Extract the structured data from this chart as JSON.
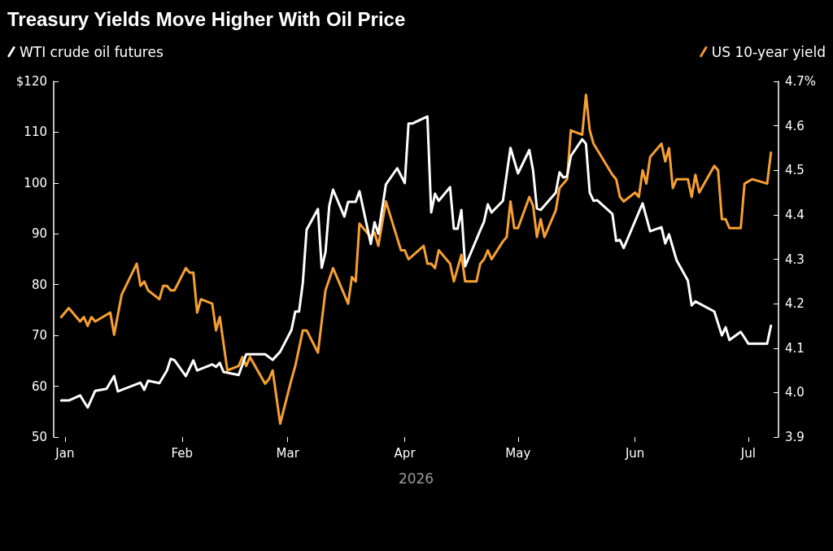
{
  "chart_data": {
    "type": "line",
    "title": "Treasury Yields Move Higher With Oil Price",
    "xlabel": "2026",
    "x": [
      "2025-12-31",
      "2026-01-02",
      "2026-01-05",
      "2026-01-07",
      "2026-01-09",
      "2026-01-12",
      "2026-01-14",
      "2026-01-15",
      "2026-01-21",
      "2026-01-22",
      "2026-01-23",
      "2026-01-26",
      "2026-01-28",
      "2026-01-29",
      "2026-01-30",
      "2026-02-02",
      "2026-02-04",
      "2026-02-05",
      "2026-02-09",
      "2026-02-10",
      "2026-02-11",
      "2026-02-12",
      "2026-02-16",
      "2026-02-18",
      "2026-02-23",
      "2026-02-25",
      "2026-02-27",
      "2026-03-02",
      "2026-03-03",
      "2026-03-04",
      "2026-03-05",
      "2026-03-06",
      "2026-03-09",
      "2026-03-10",
      "2026-03-11",
      "2026-03-12",
      "2026-03-13",
      "2026-03-16",
      "2026-03-17",
      "2026-03-19",
      "2026-03-20",
      "2026-03-23",
      "2026-03-24",
      "2026-03-25",
      "2026-03-27",
      "2026-03-30",
      "2026-04-01",
      "2026-04-02",
      "2026-04-03",
      "2026-04-07",
      "2026-04-08",
      "2026-04-09",
      "2026-04-10",
      "2026-04-13",
      "2026-04-14",
      "2026-04-15",
      "2026-04-16",
      "2026-04-17",
      "2026-04-21",
      "2026-04-22",
      "2026-04-23",
      "2026-04-24",
      "2026-04-27",
      "2026-04-29",
      "2026-05-01",
      "2026-05-04",
      "2026-05-05",
      "2026-05-06",
      "2026-05-07",
      "2026-05-11",
      "2026-05-12",
      "2026-05-13",
      "2026-05-14",
      "2026-05-15",
      "2026-05-18",
      "2026-05-19",
      "2026-05-20",
      "2026-05-21",
      "2026-05-22",
      "2026-05-26",
      "2026-05-27",
      "2026-05-28",
      "2026-05-29",
      "2026-06-03",
      "2026-06-05",
      "2026-06-08",
      "2026-06-09",
      "2026-06-10",
      "2026-06-12",
      "2026-06-15",
      "2026-06-16",
      "2026-06-17",
      "2026-06-22",
      "2026-06-24",
      "2026-06-25",
      "2026-06-26",
      "2026-06-29",
      "2026-07-01",
      "2026-07-06",
      "2026-07-07"
    ],
    "series": [
      {
        "name": "WTI crude oil futures",
        "color": "#ffffff",
        "values": [
          57.2,
          57.2,
          58.2,
          55.8,
          59.1,
          59.5,
          62.0,
          59.0,
          60.7,
          59.3,
          61.1,
          60.6,
          63.1,
          65.4,
          65.1,
          62.0,
          65.1,
          63.1,
          64.3,
          63.8,
          64.6,
          62.8,
          62.2,
          66.3,
          66.3,
          65.2,
          66.8,
          71.1,
          74.7,
          74.7,
          80.4,
          90.8,
          94.9,
          83.3,
          86.4,
          95.5,
          98.7,
          93.4,
          96.3,
          96.3,
          98.4,
          88.0,
          92.3,
          90.0,
          99.7,
          102.9,
          100.0,
          111.7,
          111.7,
          113.1,
          94.2,
          97.9,
          96.5,
          99.2,
          91.0,
          91.0,
          94.7,
          83.6,
          90.7,
          92.4,
          95.8,
          94.2,
          96.5,
          106.9,
          101.9,
          106.5,
          102.4,
          95.0,
          94.7,
          98.1,
          102.1,
          101.1,
          101.3,
          105.3,
          108.6,
          107.7,
          98.1,
          96.5,
          96.6,
          93.9,
          88.6,
          88.8,
          87.2,
          96.0,
          90.5,
          91.3,
          88.1,
          89.9,
          84.8,
          80.8,
          75.9,
          76.7,
          74.7,
          70.0,
          71.6,
          69.1,
          70.7,
          68.4,
          68.4,
          71.9
        ]
      },
      {
        "name": "US 10-year yield",
        "color": "#f7a032",
        "axis": "y2",
        "x": [
          "2025-12-31",
          "2026-01-02",
          "2026-01-05",
          "2026-01-06",
          "2026-01-07",
          "2026-01-08",
          "2026-01-09",
          "2026-01-13",
          "2026-01-14",
          "2026-01-16",
          "2026-01-20",
          "2026-01-21",
          "2026-01-22",
          "2026-01-23",
          "2026-01-26",
          "2026-01-27",
          "2026-01-28",
          "2026-01-29",
          "2026-01-30",
          "2026-02-02",
          "2026-02-03",
          "2026-02-04",
          "2026-02-05",
          "2026-02-06",
          "2026-02-09",
          "2026-02-10",
          "2026-02-11",
          "2026-02-13",
          "2026-02-16",
          "2026-02-17",
          "2026-02-18",
          "2026-02-19",
          "2026-02-23",
          "2026-02-24",
          "2026-02-25",
          "2026-02-27",
          "2026-03-02",
          "2026-03-03",
          "2026-03-05",
          "2026-03-06",
          "2026-03-09",
          "2026-03-11",
          "2026-03-13",
          "2026-03-17",
          "2026-03-18",
          "2026-03-19",
          "2026-03-20",
          "2026-03-23",
          "2026-03-24",
          "2026-03-25",
          "2026-03-27",
          "2026-03-31",
          "2026-04-01",
          "2026-04-02",
          "2026-04-06",
          "2026-04-07",
          "2026-04-08",
          "2026-04-09",
          "2026-04-10",
          "2026-04-13",
          "2026-04-14",
          "2026-04-16",
          "2026-04-17",
          "2026-04-20",
          "2026-04-21",
          "2026-04-22",
          "2026-04-23",
          "2026-04-24",
          "2026-04-27",
          "2026-04-28",
          "2026-04-29",
          "2026-04-30",
          "2026-05-01",
          "2026-05-04",
          "2026-05-05",
          "2026-05-06",
          "2026-05-07",
          "2026-05-08",
          "2026-05-11",
          "2026-05-12",
          "2026-05-14",
          "2026-05-15",
          "2026-05-18",
          "2026-05-19",
          "2026-05-20",
          "2026-05-21",
          "2026-05-26",
          "2026-05-27",
          "2026-05-28",
          "2026-05-29",
          "2026-06-01",
          "2026-06-02",
          "2026-06-03",
          "2026-06-04",
          "2026-06-05",
          "2026-06-08",
          "2026-06-09",
          "2026-06-10",
          "2026-06-11",
          "2026-06-12",
          "2026-06-15",
          "2026-06-16",
          "2026-06-17",
          "2026-06-18",
          "2026-06-22",
          "2026-06-23",
          "2026-06-24",
          "2026-06-25",
          "2026-06-26",
          "2026-06-29",
          "2026-06-30",
          "2026-07-02",
          "2026-07-06",
          "2026-07-07"
        ],
        "values": [
          4.17,
          4.19,
          4.16,
          4.17,
          4.15,
          4.17,
          4.16,
          4.18,
          4.13,
          4.22,
          4.29,
          4.24,
          4.25,
          4.23,
          4.21,
          4.24,
          4.24,
          4.23,
          4.23,
          4.28,
          4.27,
          4.27,
          4.18,
          4.21,
          4.2,
          4.14,
          4.17,
          4.05,
          4.06,
          4.08,
          4.06,
          4.08,
          4.02,
          4.03,
          4.05,
          3.93,
          4.03,
          4.06,
          4.14,
          4.14,
          4.09,
          4.23,
          4.28,
          4.2,
          4.26,
          4.25,
          4.38,
          4.35,
          4.36,
          4.33,
          4.43,
          4.32,
          4.32,
          4.3,
          4.33,
          4.29,
          4.29,
          4.28,
          4.32,
          4.29,
          4.25,
          4.31,
          4.25,
          4.25,
          4.29,
          4.3,
          4.32,
          4.3,
          4.34,
          4.35,
          4.43,
          4.37,
          4.37,
          4.44,
          4.42,
          4.35,
          4.39,
          4.35,
          4.41,
          4.46,
          4.48,
          4.59,
          4.58,
          4.67,
          4.59,
          4.56,
          4.49,
          4.48,
          4.44,
          4.43,
          4.45,
          4.44,
          4.5,
          4.47,
          4.53,
          4.56,
          4.52,
          4.55,
          4.46,
          4.48,
          4.48,
          4.44,
          4.49,
          4.45,
          4.51,
          4.5,
          4.39,
          4.39,
          4.37,
          4.37,
          4.47,
          4.48,
          4.47,
          4.54
        ]
      }
    ],
    "xlim": [
      "2025-12-29",
      "2026-07-09"
    ],
    "xticks": [
      {
        "value": "2026-01-01",
        "label": "Jan"
      },
      {
        "value": "2026-02-01",
        "label": "Feb"
      },
      {
        "value": "2026-03-01",
        "label": "Mar"
      },
      {
        "value": "2026-04-01",
        "label": "Apr"
      },
      {
        "value": "2026-05-01",
        "label": "May"
      },
      {
        "value": "2026-06-01",
        "label": "Jun"
      },
      {
        "value": "2026-07-01",
        "label": "Jul"
      }
    ],
    "ylim": [
      50,
      120
    ],
    "yticks": [
      50,
      60,
      70,
      80,
      90,
      100,
      110,
      {
        "value": 120,
        "label": "$120"
      }
    ],
    "y2lim": [
      3.9,
      4.7
    ],
    "y2ticks": [
      3.9,
      {
        "value": 4.0,
        "label": "4.0"
      },
      4.1,
      4.2,
      4.3,
      4.4,
      4.5,
      4.6,
      {
        "value": 4.7,
        "label": "4.7%"
      }
    ],
    "legend": "top",
    "grid": false,
    "marker": "none",
    "line_style": "solid"
  }
}
